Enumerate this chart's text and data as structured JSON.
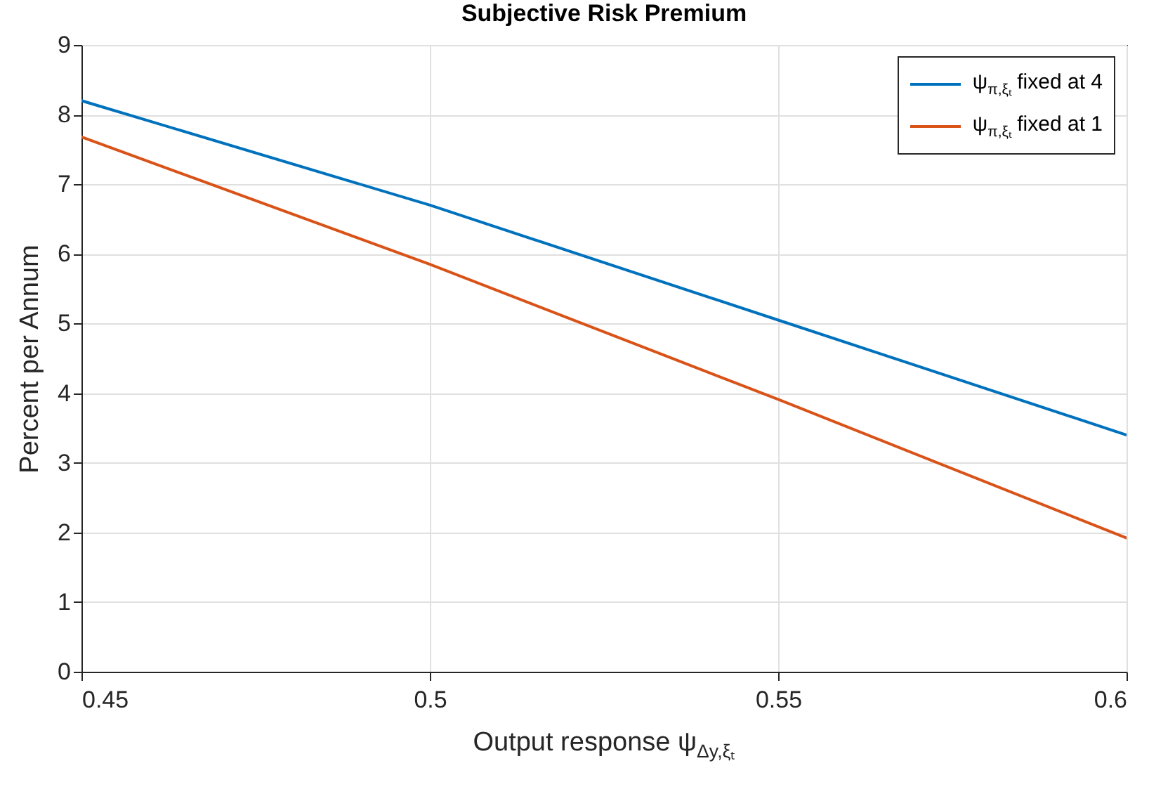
{
  "chart_data": {
    "type": "line",
    "title": "Subjective Risk Premium",
    "xlabel": "Output response ψ$_{Δy,ξₜ}$",
    "ylabel": "Percent per Annum",
    "x": [
      0.45,
      0.5,
      0.55,
      0.6
    ],
    "series": [
      {
        "name": "ψ$_{π,ξₜ}$ fixed at 4",
        "color": "#0072bd",
        "values": [
          8.2,
          6.7,
          5.05,
          3.4
        ]
      },
      {
        "name": "ψ$_{π,ξₜ}$ fixed at 1",
        "color": "#d95319",
        "values": [
          7.68,
          5.85,
          3.91,
          1.92
        ]
      }
    ],
    "xlim": [
      0.45,
      0.6
    ],
    "xticks": [
      0.45,
      0.5,
      0.55,
      0.6
    ],
    "ylim": [
      0,
      9
    ],
    "yticks": [
      0,
      1,
      2,
      3,
      4,
      5,
      6,
      7,
      8,
      9
    ],
    "grid": true,
    "legend": "top right",
    "marker": "none",
    "line_style": "solid"
  }
}
